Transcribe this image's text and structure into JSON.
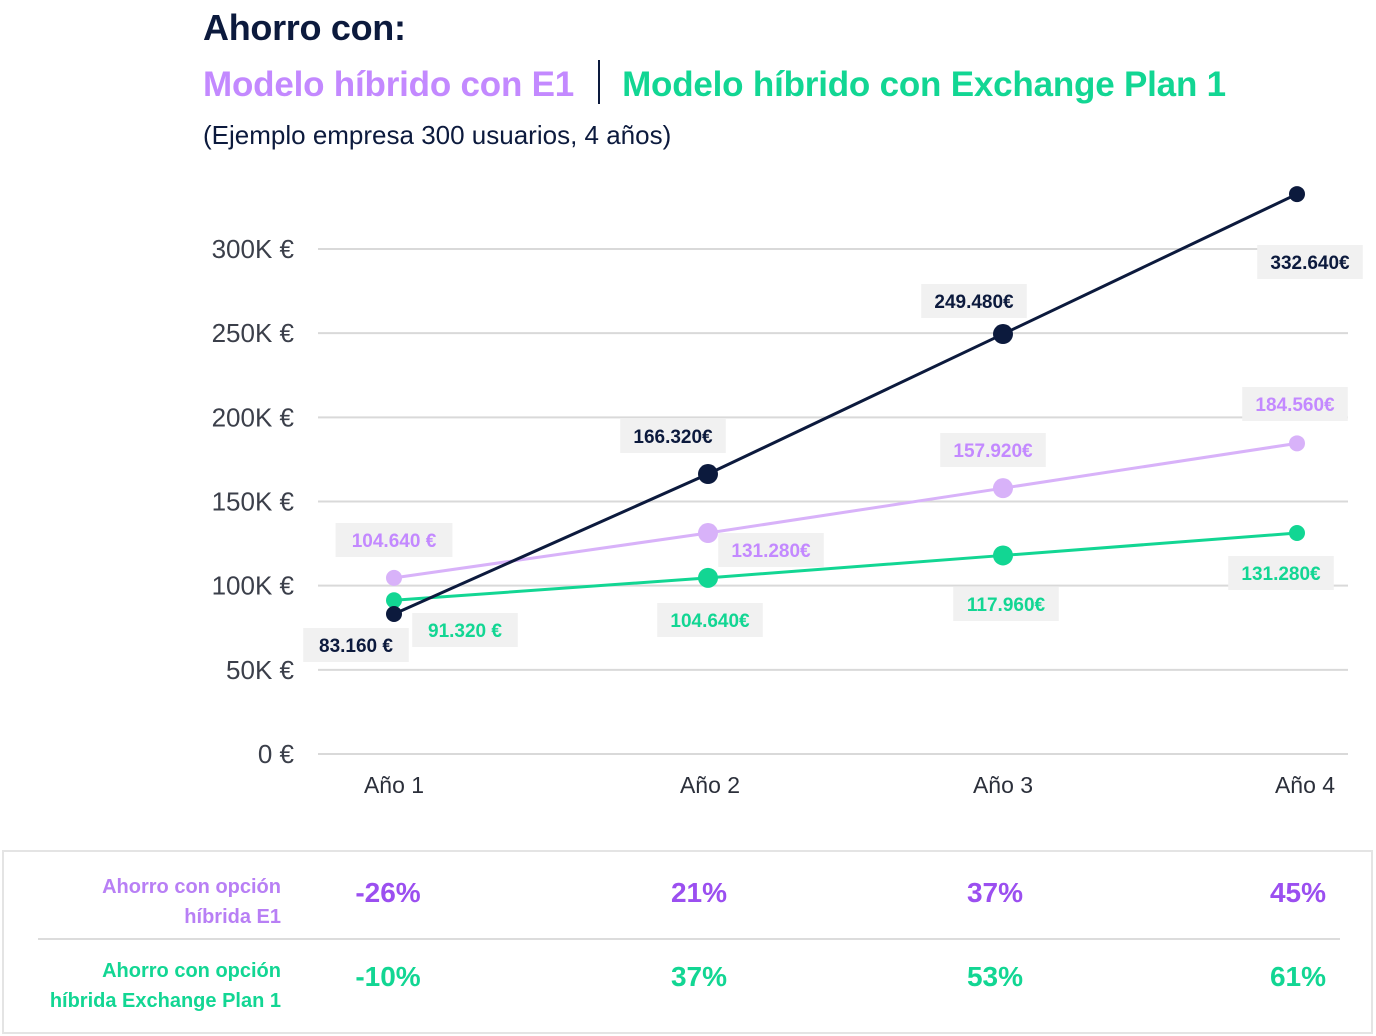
{
  "header": {
    "title": "Ahorro con:",
    "series_e1": "Modelo híbrido con E1",
    "series_ex": "Modelo híbrido con Exchange Plan 1",
    "subtitle": "(Ejemplo empresa 300 usuarios, 4 años)"
  },
  "colors": {
    "navy": "#0c1a3d",
    "purple": "#d8b2f9",
    "purple_text": "#c389ff",
    "green": "#12d693",
    "grid": "#d9d9d9",
    "label_bg": "#f1f1f1"
  },
  "chart_data": {
    "type": "line",
    "title": "Ahorro con:",
    "categories": [
      "Año 1",
      "Año 2",
      "Año 3",
      "Año 4"
    ],
    "ylim": [
      0,
      300000
    ],
    "yticks": [
      0,
      50000,
      100000,
      150000,
      200000,
      250000,
      300000
    ],
    "ytick_labels": [
      "0 €",
      "50K €",
      "100K €",
      "150K €",
      "200K €",
      "250K €",
      "300K €"
    ],
    "grid": true,
    "legend": "top",
    "series": [
      {
        "key": "navy",
        "color": "#0c1a3d",
        "values": [
          83160,
          166320,
          249480,
          332640
        ],
        "labels": [
          "83.160 €",
          "166.320€",
          "249.480€",
          "332.640€"
        ]
      },
      {
        "key": "e1",
        "name": "Modelo híbrido con E1",
        "color": "#d8b2f9",
        "label_color": "#c389ff",
        "values": [
          104640,
          131280,
          157920,
          184560
        ],
        "labels": [
          "104.640 €",
          "131.280€",
          "157.920€",
          "184.560€"
        ]
      },
      {
        "key": "ex",
        "name": "Modelo híbrido con Exchange Plan 1",
        "color": "#12d693",
        "label_color": "#12d693",
        "values": [
          91320,
          104640,
          117960,
          131280
        ],
        "labels": [
          "91.320 €",
          "104.640€",
          "117.960€",
          "131.280€"
        ]
      }
    ]
  },
  "stats": {
    "e1": {
      "label_line1": "Ahorro con opción",
      "label_line2": "híbrida E1",
      "values": [
        "-26%",
        "21%",
        "37%",
        "45%"
      ]
    },
    "ex": {
      "label_line1": "Ahorro con opción",
      "label_line2": "híbrida Exchange Plan 1",
      "values": [
        "-10%",
        "37%",
        "53%",
        "61%"
      ]
    }
  }
}
